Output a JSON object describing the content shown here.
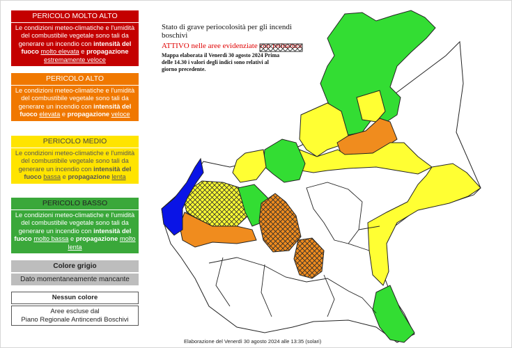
{
  "legend": {
    "very_high": {
      "header": "PERICOLO MOLTO ALTO",
      "text": "Le condizioni meteo-climatiche e l'umidità del combustibile vegetale sono tali da generare un incendio con",
      "intensity_label": "intensità del fuoco",
      "intensity_value": "molto elevata",
      "conj": "e",
      "spread_label": "propagazione",
      "spread_value": "estremamente veloce",
      "color": "#c40000"
    },
    "high": {
      "header": "PERICOLO ALTO",
      "text": "Le condizioni meteo-climatiche e l'umidità del combustibile vegetale sono tali da generare un incendio con",
      "intensity_label": "intensità del fuoco",
      "intensity_value": "elevata",
      "conj": "e",
      "spread_label": "propagazione",
      "spread_value": "veloce",
      "color": "#f07800"
    },
    "medium": {
      "header": "PERICOLO MEDIO",
      "text": "Le condizioni meteo-climatiche e l'umidità del combustibile vegetale sono tali da generare un incendio con",
      "intensity_label": "intensità del fuoco",
      "intensity_value": "bassa",
      "conj": "e",
      "spread_label": "propagazione",
      "spread_value": "lenta",
      "color": "#ffe400"
    },
    "low": {
      "header": "PERICOLO BASSO",
      "text": "Le condizioni meteo-climatiche e l'umidità del combustibile vegetale sono tali da generare un incendio con",
      "intensity_label": "intensità del fuoco",
      "intensity_value": "molto bassa",
      "conj": "e",
      "spread_label": "propagazione",
      "spread_value": "molto lenta",
      "color": "#3aa83a"
    },
    "grey": {
      "header": "Colore grigio",
      "text": "Dato momentaneamente mancante"
    },
    "none": {
      "header": "Nessun colore",
      "text_line1": "Aree escluse dal",
      "text_line2": "Piano Regionale Antincendi Boschivi"
    }
  },
  "map": {
    "title": "Stato di grave periocolosità per gli incendi boschivi",
    "active_label": "ATTIVO nelle aree evidenziate con retinatura",
    "note": "Mappa elaborata il Venerdì 30 agosto 2024 Prima delle 14.30 i valori degli indici sono relativi al giorno precedente.",
    "footer": "Elaborazione del Venerdì 30 agosto 2024 alle 13:35 (solari)",
    "colors": {
      "green": "#33dd33",
      "yellow": "#ffff33",
      "orange": "#f08c1e",
      "blue": "#0a14e6",
      "white": "#ffffff"
    }
  }
}
